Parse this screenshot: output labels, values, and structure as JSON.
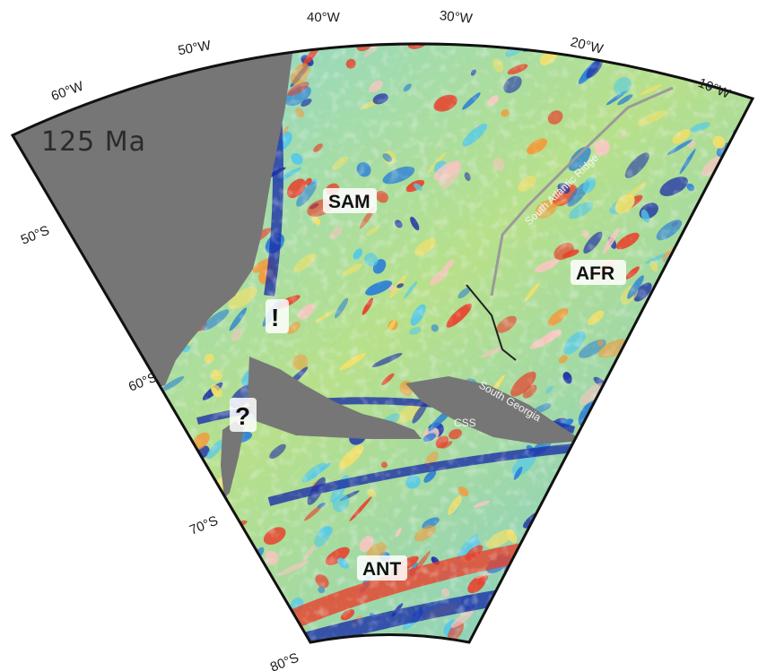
{
  "map": {
    "age_label": "125 Ma",
    "longitude_labels": [
      "60°W",
      "50°W",
      "40°W",
      "30°W",
      "20°W",
      "10°W"
    ],
    "latitude_labels": [
      "50°S",
      "60°S",
      "70°S",
      "80°S"
    ],
    "plates": {
      "sam": "SAM",
      "afr": "AFR",
      "ant": "ANT"
    },
    "features": {
      "ridge": "South Atlantic Ridge",
      "south_georgia": "South Georgia",
      "css": "CSS"
    },
    "markers": {
      "exclamation": "!",
      "question": "?"
    }
  },
  "colors": {
    "continent": "#767676",
    "frame": "#111111",
    "anomaly_low": "#1c2fa8",
    "anomaly_high": "#e8402c",
    "anomaly_mid": "#f1e06a",
    "anomaly_cyan": "#55c9e8"
  }
}
